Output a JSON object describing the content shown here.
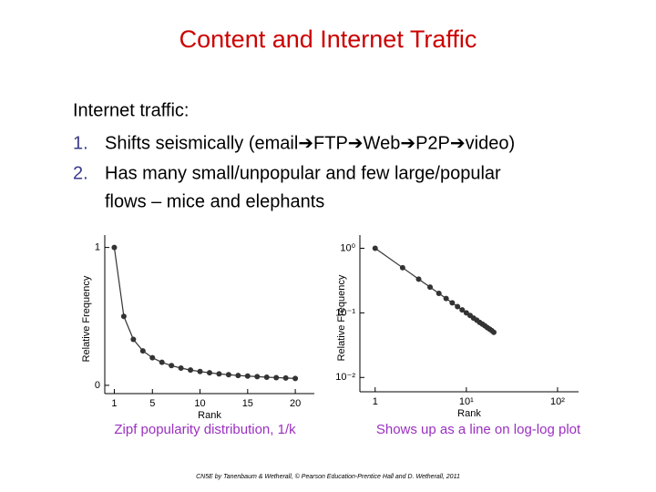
{
  "slide": {
    "title": "Content and Internet Traffic",
    "intro": "Internet traffic:",
    "items": [
      {
        "number": "1.",
        "lines": [
          "Shifts seismically (email➔FTP➔Web➔P2P➔video)"
        ]
      },
      {
        "number": "2.",
        "lines": [
          "Has many small/unpopular and few large/popular",
          "flows – mice and elephants"
        ]
      }
    ],
    "footer": "CN5E by Tanenbaum & Wetherall, © Pearson Education-Prentice Hall and D. Wetherall, 2011"
  },
  "chart_data": [
    {
      "type": "line",
      "caption": "Zipf popularity distribution, 1/k",
      "x_label": "Rank",
      "y_label": "Relative Frequency",
      "x": [
        1,
        2,
        3,
        4,
        5,
        6,
        7,
        8,
        9,
        10,
        11,
        12,
        13,
        14,
        15,
        16,
        17,
        18,
        19,
        20
      ],
      "values": [
        1,
        0.5,
        0.333,
        0.25,
        0.2,
        0.167,
        0.143,
        0.125,
        0.111,
        0.1,
        0.091,
        0.083,
        0.077,
        0.071,
        0.067,
        0.063,
        0.059,
        0.056,
        0.053,
        0.05
      ],
      "color": "#333333",
      "xlim": [
        0,
        22
      ],
      "ylim": [
        -0.06,
        1.09
      ],
      "xticks": [
        1,
        5,
        10,
        15,
        20
      ],
      "yticks": [
        0,
        1
      ]
    },
    {
      "type": "line",
      "caption": "Shows up as a line on log-log plot",
      "x_label": "Rank",
      "y_label": "Relative Frequency",
      "x": [
        1,
        2,
        3,
        4,
        5,
        6,
        7,
        8,
        9,
        10,
        11,
        12,
        13,
        14,
        15,
        16,
        17,
        18,
        19,
        20
      ],
      "values": [
        1,
        0.5,
        0.333,
        0.25,
        0.2,
        0.167,
        0.143,
        0.125,
        0.111,
        0.1,
        0.091,
        0.083,
        0.077,
        0.071,
        0.067,
        0.063,
        0.059,
        0.056,
        0.053,
        0.05
      ],
      "color": "#333333",
      "xscale": "log",
      "yscale": "log",
      "xlim": [
        0.68,
        170
      ],
      "ylim": [
        0.006,
        1.6
      ],
      "xticks": [
        1,
        {
          "value": 10,
          "label": "10¹"
        },
        {
          "value": 100,
          "label": "10²"
        }
      ],
      "yticks": [
        {
          "value": 0.01,
          "label": "10⁻²"
        },
        {
          "value": 0.1,
          "label": "10⁻¹"
        },
        {
          "value": 1,
          "label": "10⁰"
        }
      ]
    }
  ]
}
